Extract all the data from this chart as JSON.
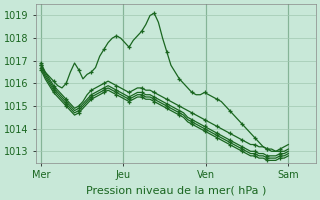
{
  "bg_color": "#c8e8d8",
  "grid_color": "#a0c8b0",
  "line_color": "#1a6620",
  "xlabel": "Pression niveau de la mer( hPa )",
  "ylim": [
    1012.5,
    1019.5
  ],
  "yticks": [
    1013,
    1014,
    1015,
    1016,
    1017,
    1018,
    1019
  ],
  "xtick_labels": [
    "Mer",
    "Jeu",
    "Ven",
    "Sam"
  ],
  "xtick_positions": [
    0,
    36,
    72,
    108
  ],
  "xlabel_fontsize": 8,
  "xlim": [
    0,
    120
  ],
  "series": [
    [
      1016.8,
      1016.5,
      1016.3,
      1016.1,
      1015.9,
      1015.8,
      1016.0,
      1016.5,
      1016.9,
      1016.6,
      1016.2,
      1016.4,
      1016.5,
      1016.7,
      1017.2,
      1017.5,
      1017.8,
      1018.0,
      1018.1,
      1018.0,
      1017.8,
      1017.6,
      1017.9,
      1018.1,
      1018.3,
      1018.6,
      1019.0,
      1019.1,
      1018.7,
      1018.0,
      1017.4,
      1016.8,
      1016.5,
      1016.2,
      1016.0,
      1015.8,
      1015.6,
      1015.5,
      1015.5,
      1015.6,
      1015.5,
      1015.4,
      1015.3,
      1015.2,
      1015.0,
      1014.8,
      1014.6,
      1014.4,
      1014.2,
      1014.0,
      1013.8,
      1013.6,
      1013.4,
      1013.2,
      1013.1,
      1013.0,
      1013.0,
      1013.1,
      1013.2,
      1013.3
    ],
    [
      1016.9,
      1016.5,
      1016.2,
      1015.9,
      1015.7,
      1015.5,
      1015.3,
      1015.1,
      1014.9,
      1015.0,
      1015.2,
      1015.5,
      1015.7,
      1015.8,
      1015.9,
      1016.0,
      1016.1,
      1016.0,
      1015.9,
      1015.8,
      1015.7,
      1015.6,
      1015.7,
      1015.8,
      1015.8,
      1015.7,
      1015.7,
      1015.6,
      1015.5,
      1015.4,
      1015.3,
      1015.2,
      1015.1,
      1015.0,
      1014.9,
      1014.8,
      1014.7,
      1014.6,
      1014.5,
      1014.4,
      1014.3,
      1014.2,
      1014.1,
      1014.0,
      1013.9,
      1013.8,
      1013.7,
      1013.6,
      1013.5,
      1013.4,
      1013.3,
      1013.3,
      1013.2,
      1013.2,
      1013.1,
      1013.1,
      1013.0,
      1013.0,
      1013.0,
      1013.1
    ],
    [
      1016.8,
      1016.4,
      1016.1,
      1015.8,
      1015.6,
      1015.4,
      1015.2,
      1015.0,
      1014.8,
      1014.9,
      1015.1,
      1015.3,
      1015.5,
      1015.6,
      1015.7,
      1015.8,
      1015.9,
      1015.8,
      1015.7,
      1015.6,
      1015.5,
      1015.4,
      1015.5,
      1015.6,
      1015.6,
      1015.5,
      1015.5,
      1015.4,
      1015.3,
      1015.2,
      1015.1,
      1015.0,
      1014.9,
      1014.8,
      1014.7,
      1014.5,
      1014.4,
      1014.3,
      1014.2,
      1014.1,
      1014.0,
      1013.9,
      1013.8,
      1013.7,
      1013.6,
      1013.5,
      1013.4,
      1013.3,
      1013.2,
      1013.1,
      1013.0,
      1013.0,
      1012.9,
      1012.9,
      1012.8,
      1012.8,
      1012.8,
      1012.9,
      1012.9,
      1013.0
    ],
    [
      1016.7,
      1016.3,
      1016.0,
      1015.7,
      1015.5,
      1015.3,
      1015.1,
      1014.9,
      1014.7,
      1014.8,
      1015.0,
      1015.2,
      1015.4,
      1015.5,
      1015.6,
      1015.7,
      1015.8,
      1015.7,
      1015.6,
      1015.5,
      1015.4,
      1015.3,
      1015.4,
      1015.5,
      1015.5,
      1015.4,
      1015.4,
      1015.3,
      1015.2,
      1015.1,
      1015.0,
      1014.9,
      1014.8,
      1014.7,
      1014.6,
      1014.4,
      1014.3,
      1014.2,
      1014.1,
      1014.0,
      1013.9,
      1013.8,
      1013.7,
      1013.6,
      1013.5,
      1013.4,
      1013.3,
      1013.2,
      1013.1,
      1013.0,
      1012.9,
      1012.9,
      1012.8,
      1012.8,
      1012.7,
      1012.7,
      1012.7,
      1012.8,
      1012.8,
      1012.9
    ],
    [
      1016.6,
      1016.2,
      1015.9,
      1015.6,
      1015.4,
      1015.2,
      1015.0,
      1014.8,
      1014.6,
      1014.7,
      1014.9,
      1015.1,
      1015.3,
      1015.4,
      1015.5,
      1015.6,
      1015.7,
      1015.6,
      1015.5,
      1015.4,
      1015.3,
      1015.2,
      1015.3,
      1015.4,
      1015.4,
      1015.3,
      1015.3,
      1015.2,
      1015.1,
      1015.0,
      1014.9,
      1014.8,
      1014.7,
      1014.6,
      1014.5,
      1014.3,
      1014.2,
      1014.1,
      1014.0,
      1013.9,
      1013.8,
      1013.7,
      1013.6,
      1013.5,
      1013.4,
      1013.3,
      1013.2,
      1013.1,
      1013.0,
      1012.9,
      1012.8,
      1012.8,
      1012.7,
      1012.7,
      1012.6,
      1012.6,
      1012.6,
      1012.7,
      1012.7,
      1012.8
    ]
  ],
  "show_markers_every": 3
}
